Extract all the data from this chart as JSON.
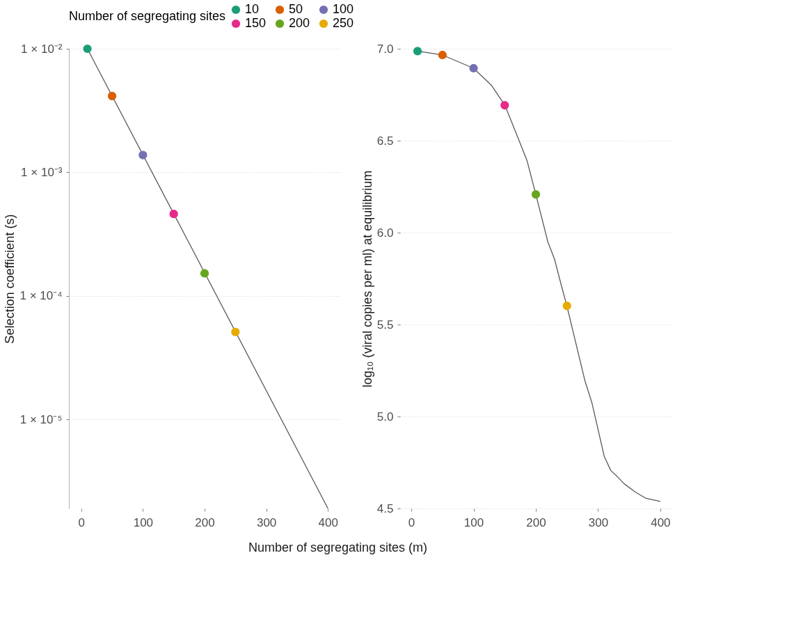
{
  "chart_data": [
    {
      "type": "line",
      "xlabel": "Number of segregating sites (m)",
      "ylabel": "Selection coefficient (s)",
      "legend_title": "Number of segregating sites",
      "legend": "top",
      "log": "y",
      "grid": "y",
      "xlim": [
        -20,
        420
      ],
      "xticks": [
        0,
        100,
        200,
        300,
        400
      ],
      "ylim": [
        1.9e-06,
        0.01
      ],
      "yticks": [
        {
          "value": 0.01,
          "label": "1 × 10⁻²"
        },
        {
          "value": 0.001,
          "label": "1 × 10⁻³"
        },
        {
          "value": 0.0001,
          "label": "1 × 10⁻⁴"
        },
        {
          "value": 1e-05,
          "label": "1 × 10⁻⁵"
        }
      ],
      "series": [
        {
          "color": "#595959",
          "x": [
            10,
            400
          ],
          "values": [
            0.01,
            1.9e-06
          ]
        },
        {
          "type": "scatter",
          "name": "10",
          "color": "#1b9e77",
          "x": [
            10
          ],
          "values": [
            0.01
          ]
        },
        {
          "type": "scatter",
          "name": "50",
          "color": "#d95f02",
          "x": [
            50
          ],
          "values": [
            0.00414
          ]
        },
        {
          "type": "scatter",
          "name": "100",
          "color": "#7570b3",
          "x": [
            100
          ],
          "values": [
            0.00138
          ]
        },
        {
          "type": "scatter",
          "name": "150",
          "color": "#e7298a",
          "x": [
            150
          ],
          "values": [
            0.00046
          ]
        },
        {
          "type": "scatter",
          "name": "200",
          "color": "#66a61e",
          "x": [
            200
          ],
          "values": [
            0.000152
          ]
        },
        {
          "type": "scatter",
          "name": "250",
          "color": "#e6ab02",
          "x": [
            250
          ],
          "values": [
            5.1e-05
          ]
        }
      ]
    },
    {
      "type": "line",
      "ylabel": "log₁₀ (viral copies per ml) at equilibrium",
      "grid": "y",
      "xlim": [
        -18,
        418
      ],
      "xticks": [
        0,
        100,
        200,
        300,
        400
      ],
      "ylim": [
        4.5,
        7.0
      ],
      "yticks": [
        4.5,
        {
          "value": 5,
          "label": "5.0"
        },
        5.5,
        {
          "value": 6,
          "label": "6.0"
        },
        6.5,
        {
          "value": 7,
          "label": "7.0"
        }
      ],
      "series": [
        {
          "color": "#595959",
          "x": [
            10,
            50,
            100,
            129,
            150,
            172,
            186,
            200,
            219.5,
            230,
            241,
            250,
            279,
            290,
            310,
            320.5,
            331,
            342,
            360,
            377,
            400
          ],
          "values": [
            6.987,
            6.966,
            6.894,
            6.8,
            6.695,
            6.51,
            6.39,
            6.208,
            5.948,
            5.856,
            5.713,
            5.6,
            5.193,
            5.076,
            4.782,
            4.706,
            4.673,
            4.634,
            4.589,
            4.555,
            4.538
          ]
        },
        {
          "type": "scatter",
          "name": "10",
          "color": "#1b9e77",
          "x": [
            10
          ],
          "values": [
            6.987
          ]
        },
        {
          "type": "scatter",
          "name": "50",
          "color": "#d95f02",
          "x": [
            50
          ],
          "values": [
            6.966
          ]
        },
        {
          "type": "scatter",
          "name": "100",
          "color": "#7570b3",
          "x": [
            100
          ],
          "values": [
            6.894
          ]
        },
        {
          "type": "scatter",
          "name": "150",
          "color": "#e7298a",
          "x": [
            150
          ],
          "values": [
            6.693
          ]
        },
        {
          "type": "scatter",
          "name": "200",
          "color": "#66a61e",
          "x": [
            200
          ],
          "values": [
            6.208
          ]
        },
        {
          "type": "scatter",
          "name": "250",
          "color": "#e6ab02",
          "x": [
            250
          ],
          "values": [
            5.602
          ]
        }
      ]
    }
  ]
}
